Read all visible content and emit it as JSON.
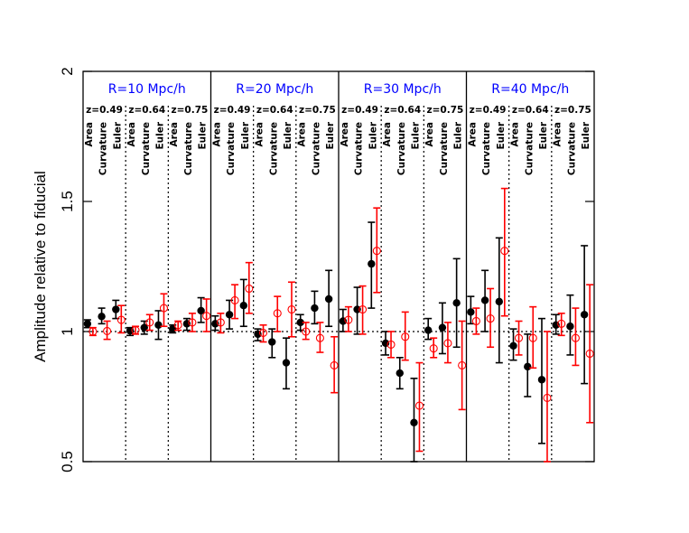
{
  "chart_data": {
    "type": "scatter",
    "ylabel": "Amplitude relative to fiducial",
    "ylim": [
      0.5,
      2
    ],
    "yticks": [
      "0.5",
      "1",
      "1.5",
      "2"
    ],
    "reference_line": 1,
    "panels": [
      {
        "label": "R=10 Mpc/h"
      },
      {
        "label": "R=20 Mpc/h"
      },
      {
        "label": "R=30 Mpc/h"
      },
      {
        "label": "R=40 Mpc/h"
      }
    ],
    "redshifts": [
      "z=0.49",
      "z=0.64",
      "z=0.75"
    ],
    "statistics": [
      "Area",
      "Curvature",
      "Euler"
    ],
    "colors": {
      "black_series": "#000000",
      "red_series": "#ff0000",
      "panel_title": "#0000ff"
    },
    "series": [
      {
        "marker": "filled-circle",
        "color": "#000000",
        "points": [
          {
            "panel": 0,
            "z": 0,
            "stat": 0,
            "y": 1.03,
            "lo": 1.015,
            "hi": 1.045
          },
          {
            "panel": 0,
            "z": 0,
            "stat": 1,
            "y": 1.058,
            "lo": 1.03,
            "hi": 1.09
          },
          {
            "panel": 0,
            "z": 0,
            "stat": 2,
            "y": 1.085,
            "lo": 1.05,
            "hi": 1.12
          },
          {
            "panel": 0,
            "z": 1,
            "stat": 0,
            "y": 1.003,
            "lo": 0.985,
            "hi": 1.015
          },
          {
            "panel": 0,
            "z": 1,
            "stat": 1,
            "y": 1.015,
            "lo": 0.99,
            "hi": 1.04
          },
          {
            "panel": 0,
            "z": 1,
            "stat": 2,
            "y": 1.025,
            "lo": 0.97,
            "hi": 1.08
          },
          {
            "panel": 0,
            "z": 2,
            "stat": 0,
            "y": 1.01,
            "lo": 0.995,
            "hi": 1.025
          },
          {
            "panel": 0,
            "z": 2,
            "stat": 1,
            "y": 1.03,
            "lo": 1.005,
            "hi": 1.05
          },
          {
            "panel": 0,
            "z": 2,
            "stat": 2,
            "y": 1.08,
            "lo": 1.035,
            "hi": 1.13
          },
          {
            "panel": 1,
            "z": 0,
            "stat": 0,
            "y": 1.03,
            "lo": 1.005,
            "hi": 1.06
          },
          {
            "panel": 1,
            "z": 0,
            "stat": 1,
            "y": 1.065,
            "lo": 1.01,
            "hi": 1.12
          },
          {
            "panel": 1,
            "z": 0,
            "stat": 2,
            "y": 1.1,
            "lo": 1.02,
            "hi": 1.2
          },
          {
            "panel": 1,
            "z": 1,
            "stat": 0,
            "y": 0.99,
            "lo": 0.965,
            "hi": 1.01
          },
          {
            "panel": 1,
            "z": 1,
            "stat": 1,
            "y": 0.96,
            "lo": 0.9,
            "hi": 1.01
          },
          {
            "panel": 1,
            "z": 1,
            "stat": 2,
            "y": 0.88,
            "lo": 0.78,
            "hi": 0.975
          },
          {
            "panel": 1,
            "z": 2,
            "stat": 0,
            "y": 1.035,
            "lo": 1.005,
            "hi": 1.065
          },
          {
            "panel": 1,
            "z": 2,
            "stat": 1,
            "y": 1.09,
            "lo": 1.03,
            "hi": 1.155
          },
          {
            "panel": 1,
            "z": 2,
            "stat": 2,
            "y": 1.125,
            "lo": 1.02,
            "hi": 1.235
          },
          {
            "panel": 2,
            "z": 0,
            "stat": 0,
            "y": 1.04,
            "lo": 1.0,
            "hi": 1.085
          },
          {
            "panel": 2,
            "z": 0,
            "stat": 1,
            "y": 1.085,
            "lo": 0.99,
            "hi": 1.17
          },
          {
            "panel": 2,
            "z": 0,
            "stat": 2,
            "y": 1.26,
            "lo": 1.09,
            "hi": 1.42
          },
          {
            "panel": 2,
            "z": 1,
            "stat": 0,
            "y": 0.955,
            "lo": 0.91,
            "hi": 1.0
          },
          {
            "panel": 2,
            "z": 1,
            "stat": 1,
            "y": 0.84,
            "lo": 0.78,
            "hi": 0.9
          },
          {
            "panel": 2,
            "z": 1,
            "stat": 2,
            "y": 0.65,
            "lo": 0.5,
            "hi": 0.82
          },
          {
            "panel": 2,
            "z": 2,
            "stat": 0,
            "y": 1.005,
            "lo": 0.97,
            "hi": 1.05
          },
          {
            "panel": 2,
            "z": 2,
            "stat": 1,
            "y": 1.015,
            "lo": 0.915,
            "hi": 1.11
          },
          {
            "panel": 2,
            "z": 2,
            "stat": 2,
            "y": 1.11,
            "lo": 0.94,
            "hi": 1.28
          },
          {
            "panel": 3,
            "z": 0,
            "stat": 0,
            "y": 1.075,
            "lo": 1.03,
            "hi": 1.135
          },
          {
            "panel": 3,
            "z": 0,
            "stat": 1,
            "y": 1.12,
            "lo": 1.0,
            "hi": 1.235
          },
          {
            "panel": 3,
            "z": 0,
            "stat": 2,
            "y": 1.115,
            "lo": 0.88,
            "hi": 1.36
          },
          {
            "panel": 3,
            "z": 1,
            "stat": 0,
            "y": 0.945,
            "lo": 0.89,
            "hi": 1.01
          },
          {
            "panel": 3,
            "z": 1,
            "stat": 1,
            "y": 0.865,
            "lo": 0.75,
            "hi": 0.99
          },
          {
            "panel": 3,
            "z": 1,
            "stat": 2,
            "y": 0.815,
            "lo": 0.57,
            "hi": 1.05
          },
          {
            "panel": 3,
            "z": 2,
            "stat": 0,
            "y": 1.025,
            "lo": 0.99,
            "hi": 1.065
          },
          {
            "panel": 3,
            "z": 2,
            "stat": 1,
            "y": 1.02,
            "lo": 0.91,
            "hi": 1.14
          },
          {
            "panel": 3,
            "z": 2,
            "stat": 2,
            "y": 1.065,
            "lo": 0.8,
            "hi": 1.33
          }
        ]
      },
      {
        "marker": "open-circle",
        "color": "#ff0000",
        "points": [
          {
            "panel": 0,
            "z": 0,
            "stat": 0,
            "y": 1.0,
            "lo": 0.985,
            "hi": 1.015
          },
          {
            "panel": 0,
            "z": 0,
            "stat": 1,
            "y": 1.002,
            "lo": 0.97,
            "hi": 1.04
          },
          {
            "panel": 0,
            "z": 0,
            "stat": 2,
            "y": 1.045,
            "lo": 0.995,
            "hi": 1.1
          },
          {
            "panel": 0,
            "z": 1,
            "stat": 0,
            "y": 1.005,
            "lo": 0.99,
            "hi": 1.02
          },
          {
            "panel": 0,
            "z": 1,
            "stat": 1,
            "y": 1.035,
            "lo": 1.005,
            "hi": 1.065
          },
          {
            "panel": 0,
            "z": 1,
            "stat": 2,
            "y": 1.09,
            "lo": 1.02,
            "hi": 1.145
          },
          {
            "panel": 0,
            "z": 2,
            "stat": 0,
            "y": 1.025,
            "lo": 1.005,
            "hi": 1.04
          },
          {
            "panel": 0,
            "z": 2,
            "stat": 1,
            "y": 1.035,
            "lo": 1.0,
            "hi": 1.07
          },
          {
            "panel": 0,
            "z": 2,
            "stat": 2,
            "y": 1.06,
            "lo": 1.0,
            "hi": 1.125
          },
          {
            "panel": 1,
            "z": 0,
            "stat": 0,
            "y": 1.035,
            "lo": 0.995,
            "hi": 1.07
          },
          {
            "panel": 1,
            "z": 0,
            "stat": 1,
            "y": 1.12,
            "lo": 1.05,
            "hi": 1.18
          },
          {
            "panel": 1,
            "z": 0,
            "stat": 2,
            "y": 1.165,
            "lo": 1.07,
            "hi": 1.265
          },
          {
            "panel": 1,
            "z": 1,
            "stat": 0,
            "y": 0.995,
            "lo": 0.96,
            "hi": 1.025
          },
          {
            "panel": 1,
            "z": 1,
            "stat": 1,
            "y": 1.07,
            "lo": 1.0,
            "hi": 1.135
          },
          {
            "panel": 1,
            "z": 1,
            "stat": 2,
            "y": 1.085,
            "lo": 0.98,
            "hi": 1.19
          },
          {
            "panel": 1,
            "z": 2,
            "stat": 0,
            "y": 1.0,
            "lo": 0.97,
            "hi": 1.035
          },
          {
            "panel": 1,
            "z": 2,
            "stat": 1,
            "y": 0.975,
            "lo": 0.92,
            "hi": 1.035
          },
          {
            "panel": 1,
            "z": 2,
            "stat": 2,
            "y": 0.87,
            "lo": 0.765,
            "hi": 0.98
          },
          {
            "panel": 2,
            "z": 0,
            "stat": 0,
            "y": 1.045,
            "lo": 1.0,
            "hi": 1.095
          },
          {
            "panel": 2,
            "z": 0,
            "stat": 1,
            "y": 1.085,
            "lo": 0.99,
            "hi": 1.175
          },
          {
            "panel": 2,
            "z": 0,
            "stat": 2,
            "y": 1.31,
            "lo": 1.15,
            "hi": 1.475
          },
          {
            "panel": 2,
            "z": 1,
            "stat": 0,
            "y": 0.95,
            "lo": 0.9,
            "hi": 1.0
          },
          {
            "panel": 2,
            "z": 1,
            "stat": 1,
            "y": 0.98,
            "lo": 0.89,
            "hi": 1.075
          },
          {
            "panel": 2,
            "z": 1,
            "stat": 2,
            "y": 0.715,
            "lo": 0.54,
            "hi": 0.88
          },
          {
            "panel": 2,
            "z": 2,
            "stat": 0,
            "y": 0.935,
            "lo": 0.9,
            "hi": 0.975
          },
          {
            "panel": 2,
            "z": 2,
            "stat": 1,
            "y": 0.955,
            "lo": 0.88,
            "hi": 1.035
          },
          {
            "panel": 2,
            "z": 2,
            "stat": 2,
            "y": 0.87,
            "lo": 0.7,
            "hi": 1.04
          },
          {
            "panel": 3,
            "z": 0,
            "stat": 0,
            "y": 1.04,
            "lo": 0.99,
            "hi": 1.09
          },
          {
            "panel": 3,
            "z": 0,
            "stat": 1,
            "y": 1.05,
            "lo": 0.94,
            "hi": 1.165
          },
          {
            "panel": 3,
            "z": 0,
            "stat": 2,
            "y": 1.31,
            "lo": 1.06,
            "hi": 1.55
          },
          {
            "panel": 3,
            "z": 1,
            "stat": 0,
            "y": 0.975,
            "lo": 0.91,
            "hi": 1.04
          },
          {
            "panel": 3,
            "z": 1,
            "stat": 1,
            "y": 0.975,
            "lo": 0.86,
            "hi": 1.095
          },
          {
            "panel": 3,
            "z": 1,
            "stat": 2,
            "y": 0.745,
            "lo": 0.5,
            "hi": 1.0
          },
          {
            "panel": 3,
            "z": 2,
            "stat": 0,
            "y": 1.03,
            "lo": 0.985,
            "hi": 1.07
          },
          {
            "panel": 3,
            "z": 2,
            "stat": 1,
            "y": 0.975,
            "lo": 0.87,
            "hi": 1.09
          },
          {
            "panel": 3,
            "z": 2,
            "stat": 2,
            "y": 0.915,
            "lo": 0.65,
            "hi": 1.18
          }
        ]
      }
    ]
  }
}
